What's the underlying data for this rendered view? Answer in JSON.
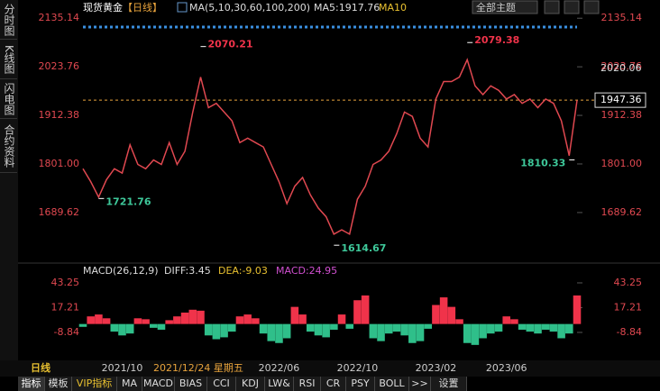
{
  "sidebar": [
    "分时图",
    "K线图",
    "闪电图",
    "合约资料"
  ],
  "toolbar": {
    "symbol": "现货黄金",
    "period": "【日线】",
    "ma_label": "MA(5,10,30,60,100,200)",
    "ma5": "MA5:1917.76",
    "ma10": "MA10",
    "theme": "全部主题"
  },
  "chart_data": [
    {
      "type": "line",
      "color": "#e04850",
      "categories": [
        null,
        null,
        null,
        null,
        null,
        "2021/10",
        null,
        null,
        null,
        null,
        null,
        null,
        null,
        null,
        null,
        null,
        null,
        null,
        null,
        null,
        null,
        null,
        null,
        null,
        null,
        "2022/06",
        null,
        null,
        null,
        null,
        null,
        null,
        null,
        null,
        null,
        "2022/10",
        null,
        null,
        null,
        null,
        null,
        null,
        null,
        null,
        null,
        "2023/02",
        null,
        null,
        null,
        null,
        null,
        null,
        null,
        null,
        "2023/06",
        null,
        null,
        null,
        null,
        null,
        null,
        null,
        null,
        null
      ],
      "values": [
        1790,
        1760,
        1725,
        1765,
        1790,
        1780,
        1845,
        1800,
        1790,
        1810,
        1800,
        1850,
        1800,
        1830,
        1920,
        2000,
        1930,
        1940,
        1920,
        1900,
        1850,
        1860,
        1850,
        1840,
        1800,
        1760,
        1710,
        1750,
        1770,
        1730,
        1700,
        1680,
        1640,
        1650,
        1640,
        1720,
        1750,
        1800,
        1810,
        1830,
        1870,
        1920,
        1910,
        1860,
        1840,
        1950,
        1990,
        1990,
        2000,
        2040,
        1980,
        1960,
        1980,
        1970,
        1950,
        1960,
        1940,
        1950,
        1930,
        1950,
        1940,
        1900,
        1820,
        1947
      ],
      "ylim": [
        1582,
        2148
      ],
      "yticks": [
        2135.14,
        2023.76,
        1912.38,
        {
          "value": 1801,
          "label": "1801.00"
        },
        1689.62
      ],
      "price_labels": [
        2020.06,
        1947.36
      ],
      "annotations": [
        {
          "x": 15,
          "y": 2070.21
        },
        {
          "x": 2,
          "y": 1721.76
        },
        {
          "x": 32,
          "y": 1614.67
        },
        {
          "x": 49,
          "y": 2079.38
        },
        {
          "x": 62,
          "y": 1810.33
        }
      ]
    },
    {
      "type": "bar",
      "title": "MACD(26,12,9)",
      "diff": "DIFF:3.45",
      "dea": "DEA:-9.03",
      "macd": "MACD:24.95",
      "up_color": "#f0334a",
      "down_color": "#2fbf8a",
      "values": [
        -3,
        8,
        10,
        6,
        -8,
        -12,
        -10,
        6,
        5,
        -4,
        -6,
        4,
        8,
        12,
        15,
        14,
        -12,
        -16,
        -14,
        -8,
        8,
        10,
        6,
        -10,
        -18,
        -20,
        -15,
        18,
        10,
        -8,
        -12,
        -14,
        -6,
        10,
        -5,
        25,
        30,
        -15,
        -18,
        -10,
        -8,
        -12,
        -20,
        -18,
        -5,
        20,
        28,
        18,
        5,
        -20,
        -22,
        -15,
        -10,
        -8,
        8,
        5,
        -6,
        -8,
        -10,
        -6,
        -8,
        -15,
        -10,
        30
      ],
      "ylim": [
        -33.5,
        50.8
      ],
      "yticks": [
        43.25,
        17.21,
        -8.84
      ]
    }
  ],
  "footer": {
    "period": "日线",
    "cursor_date": "2021/12/24 星期五"
  },
  "tabs": [
    "指标",
    "模板",
    "VIP指标",
    "MA",
    "MACD",
    "BIAS",
    "CCI",
    "KDJ",
    "LW&",
    "RSI",
    "CR",
    "PSY",
    "BOLL",
    ">>",
    "设置"
  ]
}
